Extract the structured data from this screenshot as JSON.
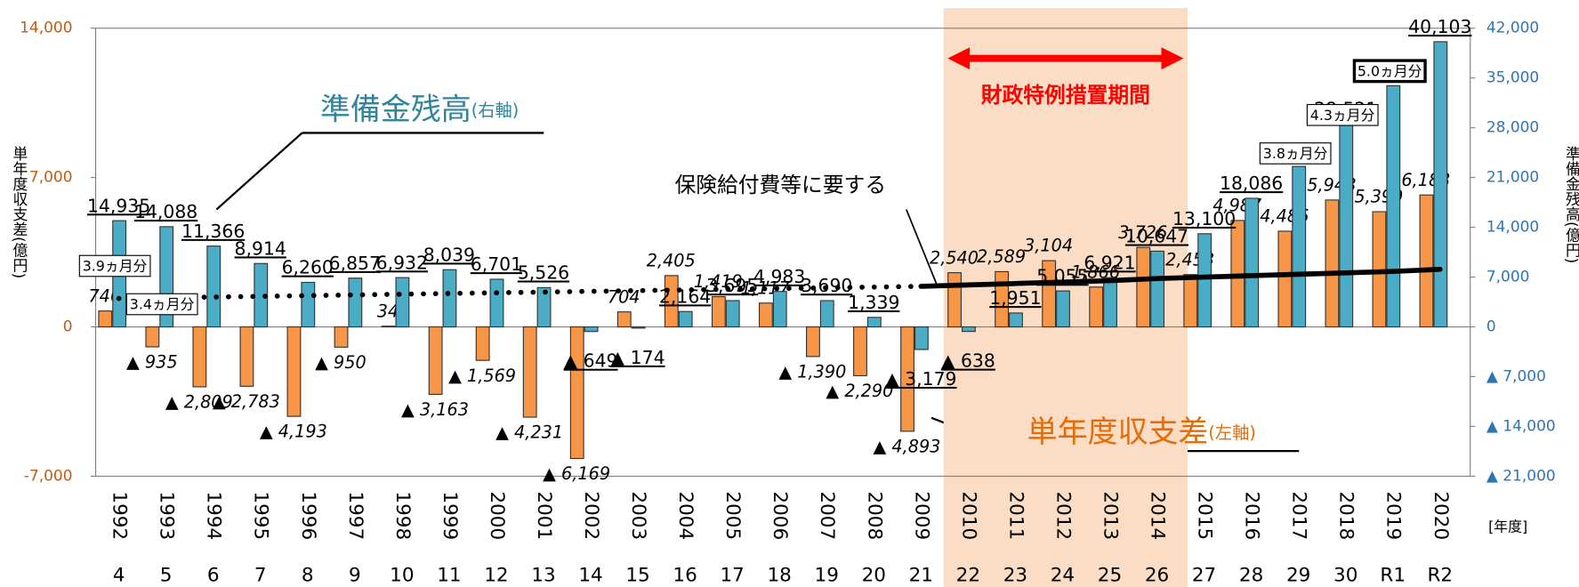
{
  "chart_data": {
    "type": "bar",
    "categories": [
      "1992",
      "1993",
      "1994",
      "1995",
      "1996",
      "1997",
      "1998",
      "1999",
      "2000",
      "2001",
      "2002",
      "2003",
      "2004",
      "2005",
      "2006",
      "2007",
      "2008",
      "2009",
      "2010",
      "2011",
      "2012",
      "2013",
      "2014",
      "2015",
      "2016",
      "2017",
      "2018",
      "2019",
      "2020"
    ],
    "era_labels": [
      "4",
      "5",
      "6",
      "7",
      "8",
      "9",
      "10",
      "11",
      "12",
      "13",
      "14",
      "15",
      "16",
      "17",
      "18",
      "19",
      "20",
      "21",
      "22",
      "23",
      "24",
      "25",
      "26",
      "27",
      "28",
      "29",
      "30",
      "R1",
      "R2"
    ],
    "x_unit": "[年度]",
    "y_label": "単年度収支差(億円)",
    "y2_label": "準備金残高(億円)",
    "ylim": [
      -7000,
      14000
    ],
    "yticks": [
      {
        "value": -7000,
        "label": "-7,000"
      },
      0,
      {
        "value": 7000,
        "label": "7,000"
      },
      {
        "value": 14000,
        "label": "14,000"
      }
    ],
    "y2lim": [
      -21000,
      42000
    ],
    "y2ticks": [
      {
        "value": -21000,
        "label": "▲ 21,000"
      },
      {
        "value": -14000,
        "label": "▲ 14,000"
      },
      {
        "value": -7000,
        "label": "▲ 7,000"
      },
      0,
      {
        "value": 7000,
        "label": "7,000"
      },
      {
        "value": 14000,
        "label": "14,000"
      },
      {
        "value": 21000,
        "label": "21,000"
      },
      {
        "value": 28000,
        "label": "28,000"
      },
      {
        "value": 35000,
        "label": "35,000"
      },
      {
        "value": 42000,
        "label": "42,000"
      }
    ],
    "series": [
      {
        "name": "単年度収支差",
        "name_note": "(左軸)",
        "color": "#f79646",
        "values": [
          746,
          -935,
          -2809,
          -2783,
          -4193,
          -950,
          34,
          -3163,
          -1569,
          -4231,
          -6169,
          704,
          2405,
          1419,
          1117,
          -1390,
          -2290,
          -4893,
          2540,
          2589,
          3104,
          1866,
          3726,
          2453,
          4987,
          4486,
          5948,
          5399,
          6183
        ],
        "value_labels": [
          "746",
          "▲ 935",
          "▲ 2,809",
          "▲ 2,783",
          "▲ 4,193",
          "▲ 950",
          "34",
          "▲ 3,163",
          "▲ 1,569",
          "▲ 4,231",
          "▲ 6,169",
          "704",
          "2,405",
          "1,419",
          "1,117",
          "▲ 1,390",
          "▲ 2,290",
          "▲ 4,893",
          "2,540",
          "2,589",
          "3,104",
          "1,866",
          "3,726",
          "2,453",
          "4,987",
          "4,486",
          "5,948",
          "5,399",
          "6,183"
        ]
      },
      {
        "name": "準備金残高",
        "name_note": "(右軸)",
        "color": "#4bacc6",
        "axis": "y2",
        "values": [
          14935,
          14088,
          11366,
          8914,
          6260,
          6857,
          6932,
          8039,
          6701,
          5526,
          -649,
          -174,
          2164,
          3695,
          4983,
          3690,
          1339,
          -3179,
          -638,
          1951,
          5055,
          6921,
          10647,
          13100,
          18086,
          22573,
          28521,
          33920,
          40103
        ],
        "value_labels": [
          "14,935",
          "14,088",
          "11,366",
          "8,914",
          "6,260",
          "6,857",
          "6,932",
          "8,039",
          "6,701",
          "5,526",
          "▲ 649",
          "▲ 174",
          "2,164",
          "3,695",
          "4,983",
          "3,690",
          "1,339",
          "▲ 3,179",
          "▲ 638",
          "1,951",
          "5,055",
          "6,921",
          "10,647",
          "13,100",
          "18,086",
          "22,573",
          "28,521",
          "33,920",
          "40,103"
        ]
      },
      {
        "name": "保険給付費等に要する",
        "type": "line",
        "axis": "y2",
        "color": "#000000",
        "solid_from": "2009",
        "values": [
          4000,
          4100,
          4200,
          4300,
          4400,
          4500,
          4600,
          4700,
          4800,
          4900,
          5000,
          5100,
          5200,
          5300,
          5400,
          5500,
          5600,
          5700,
          5900,
          6100,
          6300,
          6500,
          6800,
          7000,
          7200,
          7400,
          7600,
          7800,
          8100
        ]
      }
    ],
    "months_labels": [
      {
        "category": "1992",
        "text": "3.9ヵ月分"
      },
      {
        "category": "1993",
        "text": "3.4ヵ月分"
      },
      {
        "category": "2018",
        "text": "3.8ヵ月分"
      },
      {
        "category": "2019",
        "text": "4.3ヵ月分"
      },
      {
        "category": "2020",
        "text": "5.0ヵ月分"
      }
    ],
    "special_period": {
      "label": "財政特例措置期間",
      "from": "2010",
      "to": "2014"
    }
  }
}
